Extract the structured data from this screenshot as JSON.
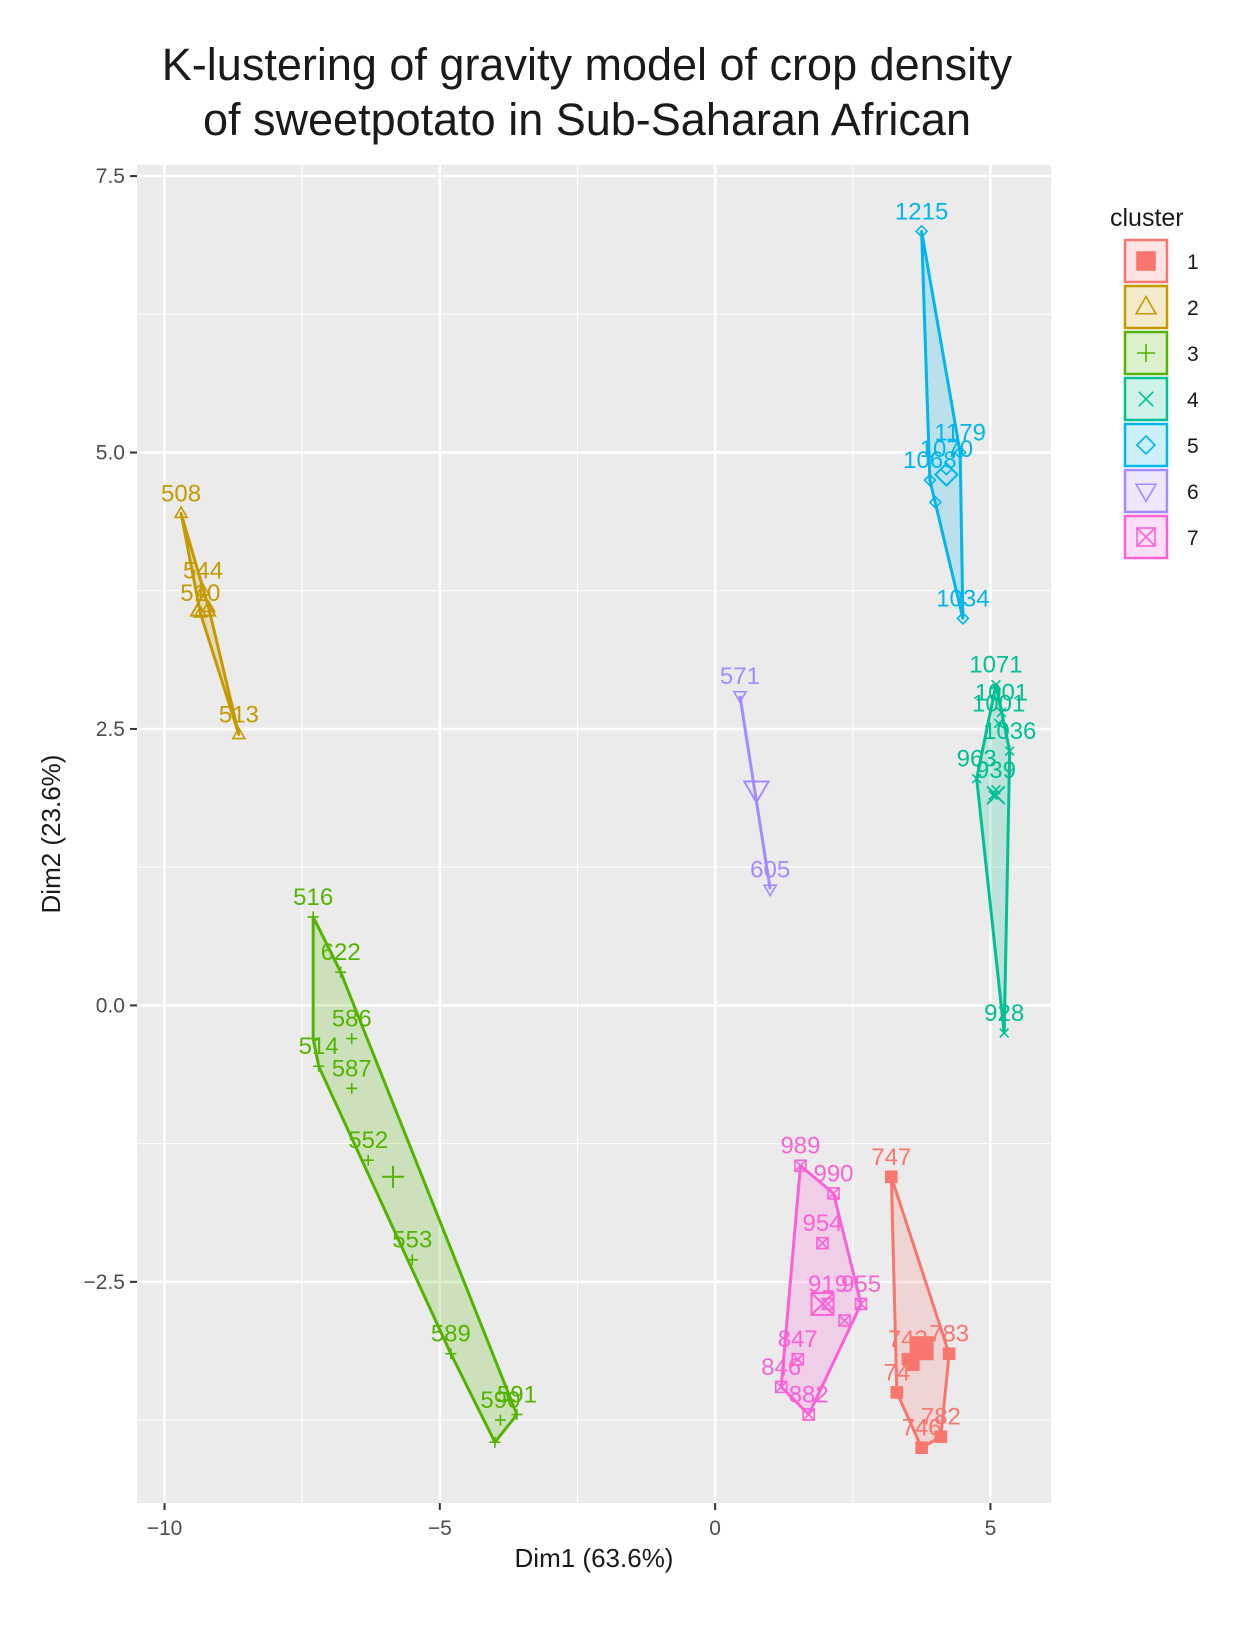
{
  "chart_data": {
    "type": "scatter",
    "title_lines": [
      "K-lustering of gravity model of crop density",
      "of sweetpotato in Sub-Saharan African"
    ],
    "xlabel": "Dim1 (63.6%)",
    "ylabel": "Dim2 (23.6%)",
    "xlim": [
      -10.5,
      6.1
    ],
    "ylim": [
      -4.5,
      7.6
    ],
    "x_ticks": [
      -10,
      -5,
      0,
      5
    ],
    "x_tick_labels": [
      "−10",
      "−5",
      "0",
      "5"
    ],
    "y_ticks": [
      -2.5,
      0,
      2.5,
      5,
      7.5
    ],
    "y_tick_labels": [
      "−2.5",
      "0.0",
      "2.5",
      "5.0",
      "7.5"
    ],
    "grid": true,
    "legend": {
      "title": "cluster",
      "position": "right"
    },
    "clusters": [
      {
        "name": "1",
        "color": "#F8766D",
        "shape": "square",
        "points": [
          [
            3.2,
            -1.55,
            "747"
          ],
          [
            4.25,
            -3.15,
            "783"
          ],
          [
            3.5,
            -3.2,
            "743"
          ],
          [
            3.3,
            -3.5,
            "74"
          ],
          [
            4.1,
            -3.9,
            "782"
          ],
          [
            3.75,
            -4.0,
            "746"
          ],
          [
            3.6,
            -3.25,
            ""
          ]
        ],
        "centroid": [
          3.75,
          -3.1
        ]
      },
      {
        "name": "2",
        "color": "#C49A00",
        "shape": "triangle",
        "points": [
          [
            -9.7,
            4.45,
            "508"
          ],
          [
            -9.3,
            3.75,
            "544"
          ],
          [
            -9.35,
            3.55,
            "510"
          ],
          [
            -9.2,
            3.6,
            ""
          ],
          [
            -8.65,
            2.45,
            "513"
          ]
        ],
        "centroid": [
          -9.3,
          3.6
        ]
      },
      {
        "name": "3",
        "color": "#53B400",
        "shape": "plus",
        "points": [
          [
            -7.3,
            0.8,
            "516"
          ],
          [
            -6.8,
            0.3,
            "622"
          ],
          [
            -6.6,
            -0.3,
            "586"
          ],
          [
            -7.3,
            -0.3,
            ""
          ],
          [
            -7.2,
            -0.55,
            "514"
          ],
          [
            -6.6,
            -0.75,
            "587"
          ],
          [
            -6.3,
            -1.4,
            "552"
          ],
          [
            -5.5,
            -2.3,
            "553"
          ],
          [
            -4.8,
            -3.15,
            "589"
          ],
          [
            -3.6,
            -3.7,
            "591"
          ],
          [
            -3.9,
            -3.75,
            "590"
          ],
          [
            -4.0,
            -3.95,
            ""
          ]
        ],
        "centroid": [
          -5.85,
          -1.55
        ]
      },
      {
        "name": "4",
        "color": "#00C094",
        "shape": "x",
        "points": [
          [
            5.1,
            2.9,
            "1071"
          ],
          [
            5.2,
            2.65,
            "1001"
          ],
          [
            5.15,
            2.55,
            "1001"
          ],
          [
            5.35,
            2.3,
            "1036"
          ],
          [
            4.75,
            2.05,
            "963"
          ],
          [
            5.1,
            1.95,
            "939"
          ],
          [
            5.05,
            1.9,
            ""
          ],
          [
            5.25,
            -0.25,
            "928"
          ]
        ],
        "centroid": [
          5.1,
          1.9
        ]
      },
      {
        "name": "5",
        "color": "#00B6EB",
        "shape": "diamond",
        "points": [
          [
            3.75,
            7.0,
            "1215"
          ],
          [
            4.45,
            5.0,
            "1179"
          ],
          [
            4.2,
            4.85,
            "1070"
          ],
          [
            3.9,
            4.75,
            "1068"
          ],
          [
            4.0,
            4.55,
            ""
          ],
          [
            4.5,
            3.5,
            "1034"
          ]
        ],
        "centroid": [
          4.2,
          4.8
        ]
      },
      {
        "name": "6",
        "color": "#A58AFF",
        "shape": "triangle_down",
        "points": [
          [
            0.45,
            2.8,
            "571"
          ],
          [
            1.0,
            1.05,
            "605"
          ]
        ],
        "centroid": [
          0.75,
          1.95
        ]
      },
      {
        "name": "7",
        "color": "#FB61D7",
        "shape": "square_x",
        "points": [
          [
            1.55,
            -1.45,
            "989"
          ],
          [
            2.15,
            -1.7,
            "990"
          ],
          [
            1.95,
            -2.15,
            "954"
          ],
          [
            2.65,
            -2.7,
            "955"
          ],
          [
            2.05,
            -2.7,
            "919"
          ],
          [
            2.35,
            -2.85,
            ""
          ],
          [
            1.5,
            -3.2,
            "847"
          ],
          [
            1.2,
            -3.45,
            "846"
          ],
          [
            1.7,
            -3.7,
            "882"
          ]
        ],
        "centroid": [
          1.95,
          -2.7
        ]
      }
    ]
  }
}
